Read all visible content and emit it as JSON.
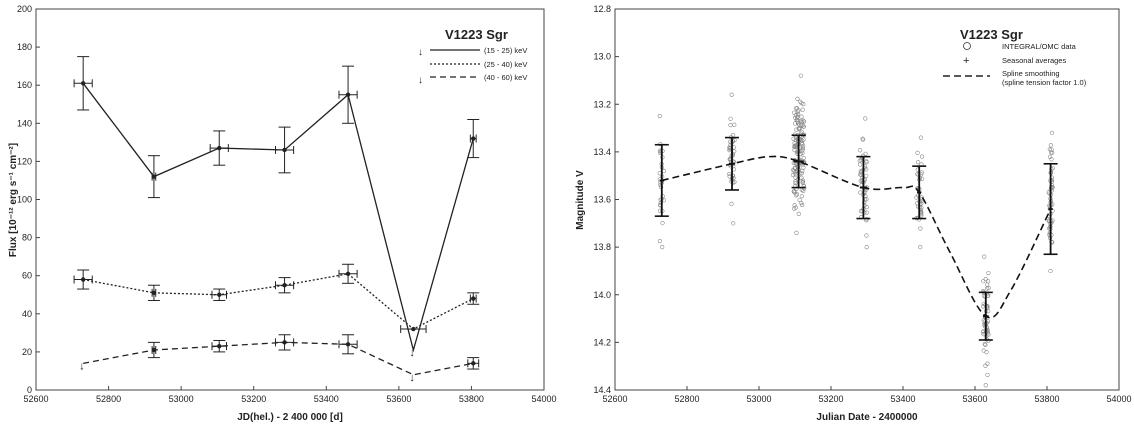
{
  "chart_data": [
    {
      "type": "line",
      "title": "V1223 Sgr",
      "xlabel": "JD(hel.) - 2 400 000 [d]",
      "ylabel": "Flux [10⁻¹² erg s⁻¹ cm⁻²]",
      "xlim": [
        52600,
        54000
      ],
      "ylim": [
        0,
        200
      ],
      "xticks": [
        52600,
        52800,
        53000,
        53200,
        53400,
        53600,
        53800,
        54000
      ],
      "yticks": [
        0,
        20,
        40,
        60,
        80,
        100,
        120,
        140,
        160,
        180,
        200
      ],
      "legend_placement": "top-right",
      "series": [
        {
          "name": "(15 - 25) keV",
          "style": "solid",
          "x": [
            52730,
            52925,
            53105,
            53285,
            53460,
            53640,
            53805
          ],
          "y": [
            161,
            112,
            127,
            126,
            155,
            21,
            132
          ],
          "yerr": [
            14,
            11,
            9,
            12,
            15,
            0,
            10
          ],
          "xerr": [
            25,
            5,
            25,
            25,
            25,
            0,
            8
          ],
          "upper_limit": [
            false,
            false,
            false,
            false,
            false,
            true,
            false
          ]
        },
        {
          "name": "(25 - 40) keV",
          "style": "dotted",
          "x": [
            52730,
            52925,
            53105,
            53285,
            53460,
            53640,
            53805
          ],
          "y": [
            58,
            51,
            50,
            55,
            61,
            32,
            48
          ],
          "yerr": [
            5,
            4,
            3,
            4,
            5,
            0,
            3
          ],
          "xerr": [
            25,
            5,
            20,
            25,
            25,
            35,
            8
          ],
          "upper_limit": [
            false,
            false,
            false,
            false,
            false,
            false,
            false
          ]
        },
        {
          "name": "(40 - 60) keV",
          "style": "dashed",
          "x": [
            52730,
            52925,
            53105,
            53285,
            53460,
            53640,
            53805
          ],
          "y": [
            14,
            21,
            23,
            25,
            24,
            8,
            14
          ],
          "yerr": [
            0,
            4,
            3,
            4,
            5,
            0,
            3
          ],
          "xerr": [
            0,
            5,
            20,
            25,
            25,
            0,
            15
          ],
          "upper_limit": [
            true,
            false,
            false,
            false,
            false,
            true,
            false
          ]
        }
      ]
    },
    {
      "type": "scatter",
      "title": "V1223 Sgr",
      "xlabel": "Julian Date - 2400000",
      "ylabel": "Magnitude V",
      "xlim": [
        52600,
        54000
      ],
      "ylim": [
        14.4,
        12.8
      ],
      "y_inverted": true,
      "xticks": [
        52600,
        52800,
        53000,
        53200,
        53400,
        53600,
        53800,
        54000
      ],
      "yticks": [
        12.8,
        13.0,
        13.2,
        13.4,
        13.6,
        13.8,
        14.0,
        14.2,
        14.4
      ],
      "legend_placement": "top-right",
      "legend": [
        {
          "symbol": "circle",
          "label": "INTEGRAL/OMC data"
        },
        {
          "symbol": "plus",
          "label": "Seasonal averages"
        },
        {
          "symbol": "dashed-line",
          "label": "Spline smoothing",
          "sublabel": "(spline tension factor 1.0)"
        }
      ],
      "omc_seasons": [
        {
          "x": 52730,
          "spread": 6,
          "count": 30,
          "ymin": 13.25,
          "ymax": 13.8
        },
        {
          "x": 52925,
          "spread": 8,
          "count": 45,
          "ymin": 13.16,
          "ymax": 13.7
        },
        {
          "x": 53110,
          "spread": 16,
          "count": 150,
          "ymin": 13.08,
          "ymax": 13.74
        },
        {
          "x": 53290,
          "spread": 10,
          "count": 55,
          "ymin": 13.26,
          "ymax": 13.8
        },
        {
          "x": 53445,
          "spread": 8,
          "count": 40,
          "ymin": 13.34,
          "ymax": 13.8
        },
        {
          "x": 53630,
          "spread": 8,
          "count": 60,
          "ymin": 13.84,
          "ymax": 14.38
        },
        {
          "x": 53810,
          "spread": 6,
          "count": 55,
          "ymin": 13.32,
          "ymax": 13.9
        }
      ],
      "seasonal_averages": {
        "x": [
          52730,
          52925,
          53110,
          53290,
          53445,
          53630,
          53810
        ],
        "y": [
          13.52,
          13.45,
          13.44,
          13.55,
          13.57,
          14.09,
          13.64
        ],
        "yerr": [
          0.15,
          0.11,
          0.11,
          0.13,
          0.11,
          0.1,
          0.19
        ],
        "xerr": [
          6,
          8,
          14,
          10,
          6,
          8,
          6
        ]
      },
      "spline": {
        "x": [
          52730,
          52925,
          53030,
          53110,
          53290,
          53400,
          53445,
          53530,
          53630,
          53700,
          53810
        ],
        "y": [
          13.52,
          13.45,
          13.42,
          13.44,
          13.55,
          13.55,
          13.57,
          13.82,
          14.09,
          13.98,
          13.64
        ]
      }
    }
  ]
}
